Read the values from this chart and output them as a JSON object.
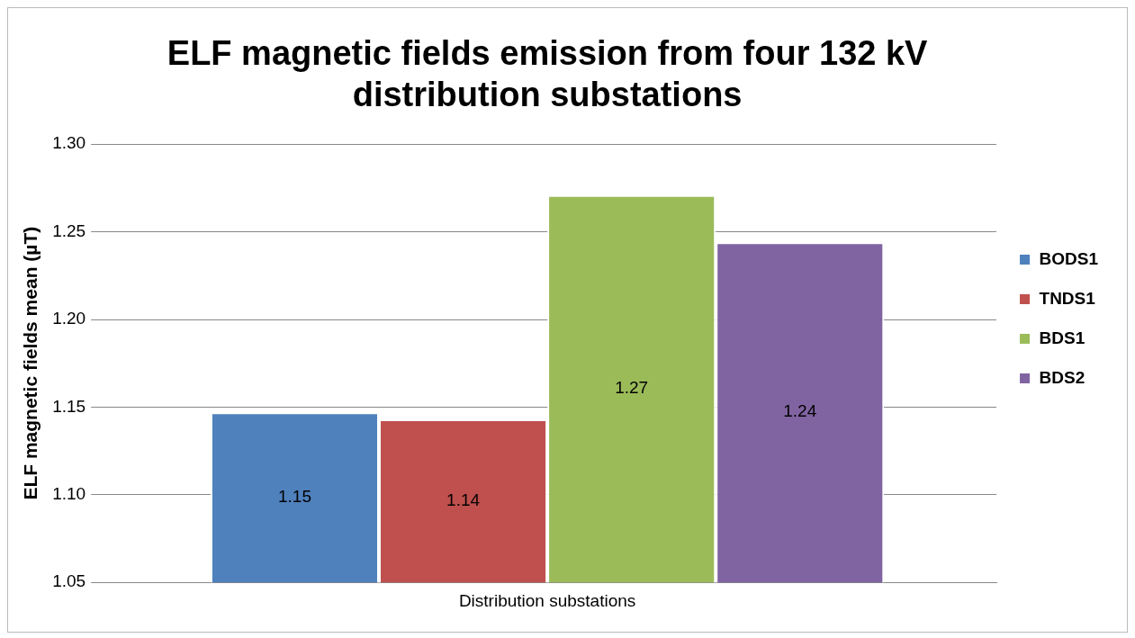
{
  "chart_data": {
    "type": "bar",
    "title": "ELF magnetic fields emission from four 132 kV distribution substations",
    "ylabel": "ELF magnetic fields mean (µT)",
    "categories": [
      "Distribution substations"
    ],
    "series": [
      {
        "name": "BODS1",
        "color": "#4f81bd",
        "values": [
          1.147
        ],
        "value_labels": [
          "1.15"
        ]
      },
      {
        "name": "TNDS1",
        "color": "#c0504d",
        "values": [
          1.143
        ],
        "value_labels": [
          "1.14"
        ]
      },
      {
        "name": "BDS1",
        "color": "#9bbb59",
        "values": [
          1.271
        ],
        "value_labels": [
          "1.27"
        ]
      },
      {
        "name": "BDS2",
        "color": "#8064a2",
        "values": [
          1.244
        ],
        "value_labels": [
          "1.24"
        ]
      }
    ],
    "ylim": [
      1.05,
      1.3
    ],
    "yticks": [
      {
        "value": 1.05,
        "label": "1.05"
      },
      {
        "value": 1.1,
        "label": "1.10"
      },
      {
        "value": 1.15,
        "label": "1.15"
      },
      {
        "value": 1.2,
        "label": "1.20"
      },
      {
        "value": 1.25,
        "label": "1.25"
      },
      {
        "value": 1.3,
        "label": "1.30"
      }
    ],
    "grid": "y",
    "legend": "right"
  }
}
